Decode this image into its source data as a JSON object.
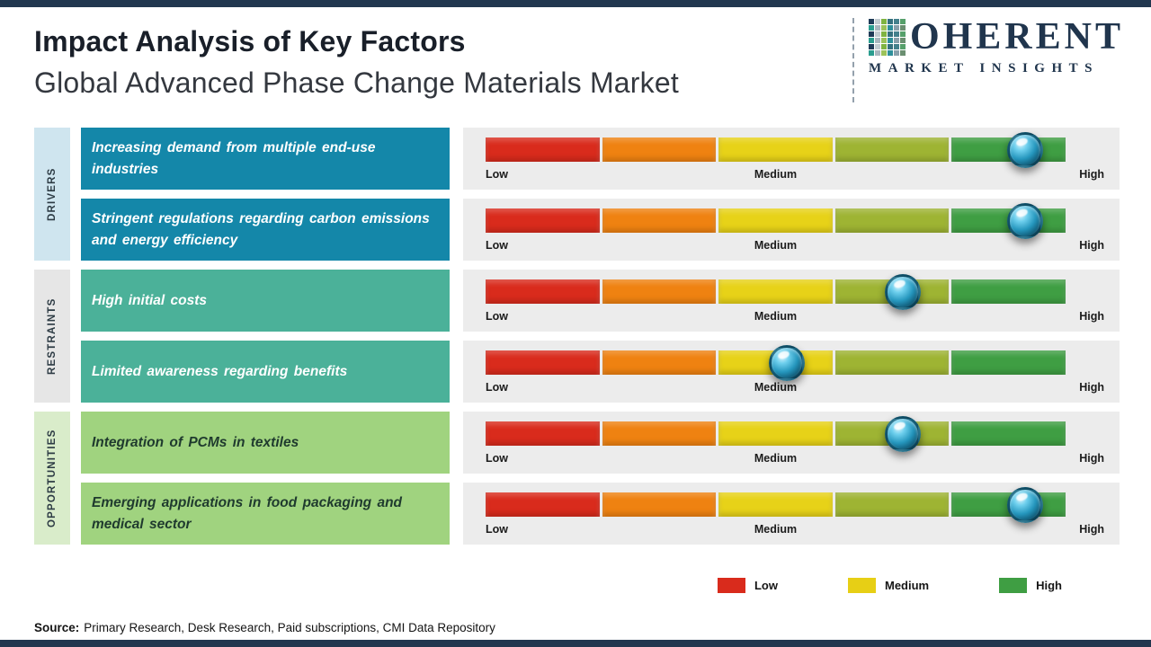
{
  "header": {
    "title": "Impact Analysis of Key Factors",
    "subtitle": "Global Advanced Phase Change Materials Market",
    "logo": {
      "brand": "COHERENT",
      "brand_after_mosaic": "OHERENT",
      "tagline": "MARKET INSIGHTS"
    }
  },
  "scale": {
    "low": "Low",
    "medium": "Medium",
    "high": "High"
  },
  "categories": [
    {
      "label": "DRIVERS",
      "label_bg": "#cfe5ef",
      "box_color": "#1487a9",
      "text_color": "#ffffff",
      "factors": [
        {
          "text": "Increasing demand from multiple end-use industries",
          "impact_pct": 93,
          "impact_level": "High"
        },
        {
          "text": "Stringent regulations regarding carbon emissions and energy efficiency",
          "impact_pct": 93,
          "impact_level": "High"
        }
      ]
    },
    {
      "label": "RESTRAINTS",
      "label_bg": "#e6e6e6",
      "box_color": "#4bb199",
      "text_color": "#ffffff",
      "factors": [
        {
          "text": "High initial costs",
          "impact_pct": 72,
          "impact_level": "Medium-High"
        },
        {
          "text": "Limited awareness regarding benefits",
          "impact_pct": 52,
          "impact_level": "Medium"
        }
      ]
    },
    {
      "label": "OPPORTUNITIES",
      "label_bg": "#d9ecca",
      "box_color": "#a0d37f",
      "text_color": "#1f3a2e",
      "factors": [
        {
          "text": "Integration of PCMs in textiles",
          "impact_pct": 72,
          "impact_level": "Medium-High"
        },
        {
          "text": "Emerging applications in food packaging and medical sector",
          "impact_pct": 93,
          "impact_level": "High"
        }
      ]
    }
  ],
  "legend": [
    {
      "label": "Low",
      "color": "#d92b1c"
    },
    {
      "label": "Medium",
      "color": "#e7cf15"
    },
    {
      "label": "High",
      "color": "#3f9e43"
    }
  ],
  "source": {
    "prefix": "Source:",
    "text": "Primary Research, Desk Research, Paid subscriptions, CMI Data Repository"
  },
  "colors": {
    "accent_navy": "#22374f",
    "strip_bg": "#ececec",
    "bar_segments": [
      "#d92b1c",
      "#ef8211",
      "#e7d218",
      "#9eb433",
      "#3f9e43"
    ]
  },
  "chart_data": {
    "type": "bar",
    "title": "Impact Analysis of Key Factors",
    "subtitle": "Global Advanced Phase Change Materials Market",
    "scale_labels": [
      "Low",
      "Medium",
      "High"
    ],
    "legend": [
      "Low",
      "Medium",
      "High"
    ],
    "series": [
      {
        "category": "Drivers",
        "factor": "Increasing demand from multiple end-use industries",
        "impact": "High",
        "position_pct": 93
      },
      {
        "category": "Drivers",
        "factor": "Stringent regulations regarding carbon emissions and energy efficiency",
        "impact": "High",
        "position_pct": 93
      },
      {
        "category": "Restraints",
        "factor": "High initial costs",
        "impact": "Medium-High",
        "position_pct": 72
      },
      {
        "category": "Restraints",
        "factor": "Limited awareness regarding benefits",
        "impact": "Medium",
        "position_pct": 52
      },
      {
        "category": "Opportunities",
        "factor": "Integration of PCMs in textiles",
        "impact": "Medium-High",
        "position_pct": 72
      },
      {
        "category": "Opportunities",
        "factor": "Emerging applications in food packaging and medical sector",
        "impact": "High",
        "position_pct": 93
      }
    ]
  }
}
